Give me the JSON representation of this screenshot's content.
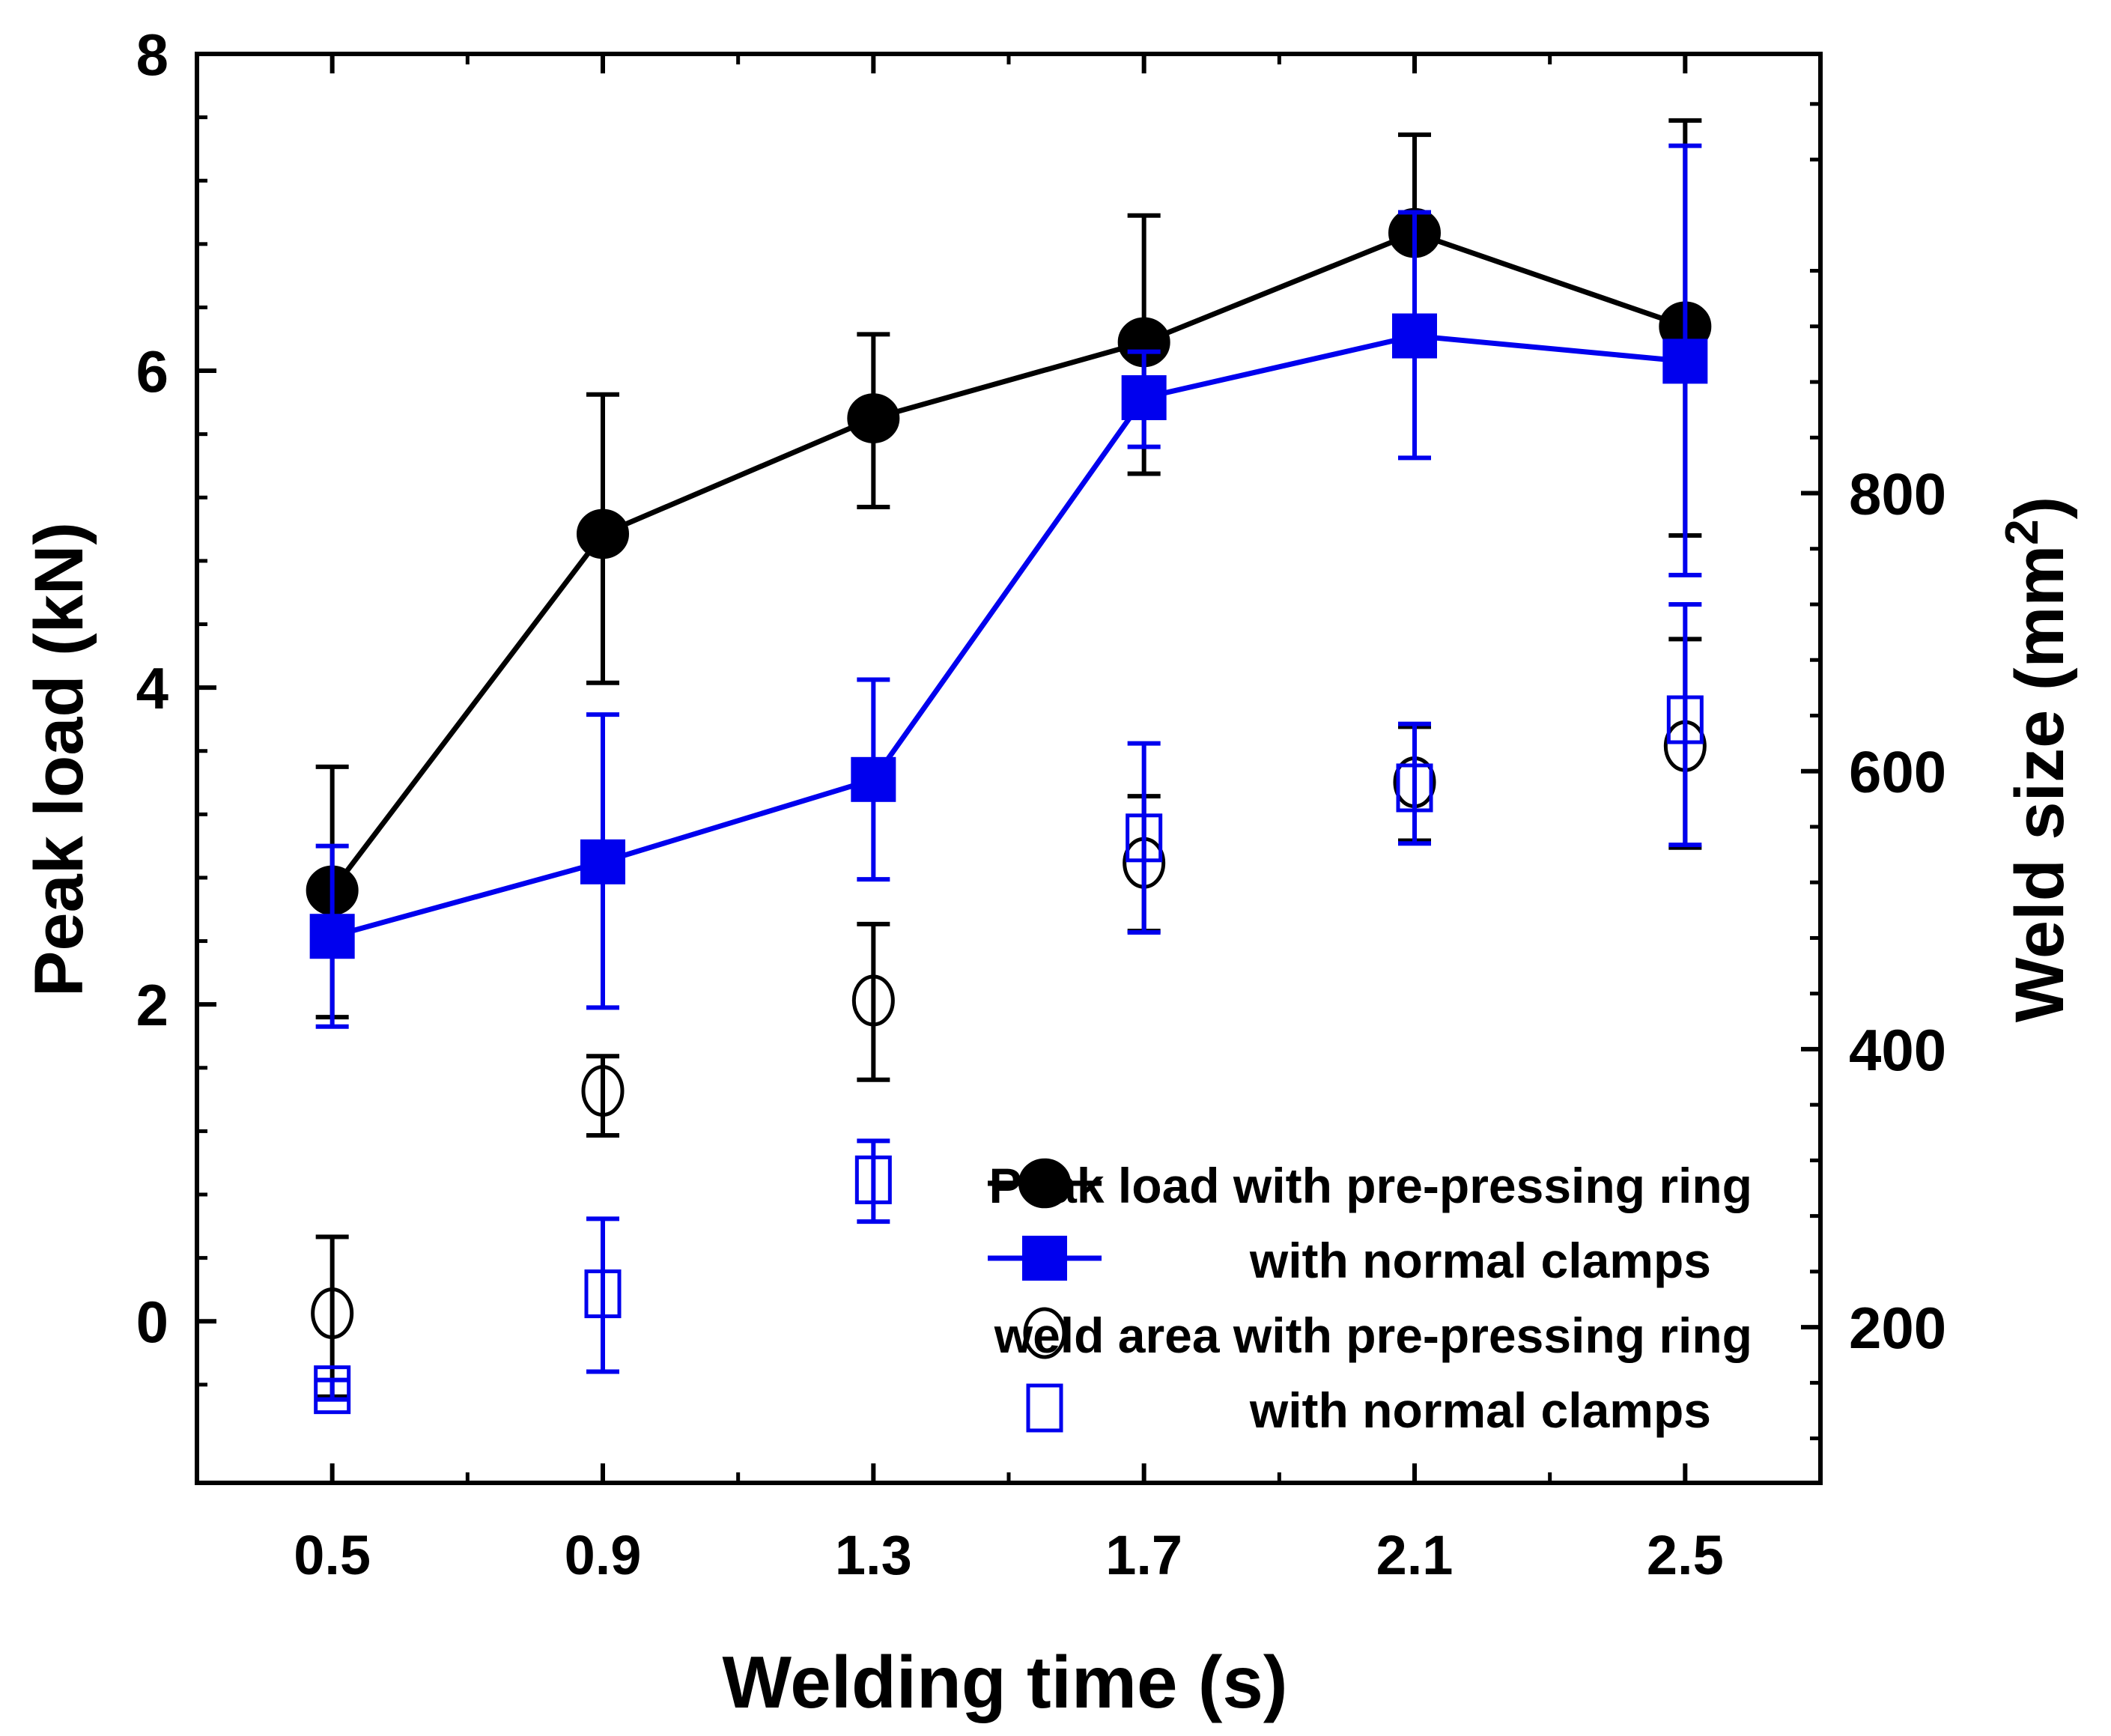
{
  "chart_data": {
    "type": "scatter",
    "xlabel": "Welding time (s)",
    "ylabel_left": "Peak load (kN)",
    "ylabel_right": "Weld size (mm",
    "ylabel_right_sup": "2",
    "ylabel_right_close": ")",
    "x_ticks": [
      "0.5",
      "0.9",
      "1.3",
      "1.7",
      "2.1",
      "2.5"
    ],
    "y_left_ticks": [
      "0",
      "2",
      "4",
      "6",
      "8"
    ],
    "y_right_ticks": [
      "200",
      "400",
      "600",
      "800"
    ],
    "xlim": [
      0.3,
      2.7
    ],
    "ylim_left": [
      -1.02,
      8
    ],
    "ylim_right": [
      88,
      1116
    ],
    "grid": false,
    "legend_position": "bottom-right",
    "series": [
      {
        "name": "Peak load with pre-pressing ring",
        "axis": "left",
        "marker": "filled-circle",
        "line": true,
        "color": "#000000",
        "points": [
          {
            "x": 0.5,
            "y": 2.72,
            "lo": 1.92,
            "hi": 3.5
          },
          {
            "x": 0.9,
            "y": 4.97,
            "lo": 4.03,
            "hi": 5.85
          },
          {
            "x": 1.3,
            "y": 5.7,
            "lo": 5.14,
            "hi": 6.23
          },
          {
            "x": 1.7,
            "y": 6.18,
            "lo": 5.35,
            "hi": 6.98
          },
          {
            "x": 2.1,
            "y": 6.87,
            "lo": 6.24,
            "hi": 7.49
          },
          {
            "x": 2.5,
            "y": 6.28,
            "lo": 4.96,
            "hi": 7.58
          }
        ]
      },
      {
        "name": "with normal clamps",
        "axis": "left",
        "marker": "filled-square",
        "line": true,
        "color": "#0000ee",
        "points": [
          {
            "x": 0.5,
            "y": 2.43,
            "lo": 1.86,
            "hi": 3.0
          },
          {
            "x": 0.9,
            "y": 2.9,
            "lo": 1.98,
            "hi": 3.83
          },
          {
            "x": 1.3,
            "y": 3.42,
            "lo": 2.79,
            "hi": 4.05
          },
          {
            "x": 1.7,
            "y": 5.83,
            "lo": 5.52,
            "hi": 6.12
          },
          {
            "x": 2.1,
            "y": 6.22,
            "lo": 5.45,
            "hi": 7.0
          },
          {
            "x": 2.5,
            "y": 6.06,
            "lo": 4.71,
            "hi": 7.42
          }
        ]
      },
      {
        "name": "weld area with pre-pressing ring",
        "axis": "right",
        "marker": "open-circle",
        "line": false,
        "color": "#000000",
        "points": [
          {
            "x": 0.5,
            "y": 210,
            "lo": 150,
            "hi": 265
          },
          {
            "x": 0.9,
            "y": 370,
            "lo": 338,
            "hi": 395
          },
          {
            "x": 1.3,
            "y": 435,
            "lo": 378,
            "hi": 490
          },
          {
            "x": 1.7,
            "y": 534,
            "lo": 485,
            "hi": 582
          },
          {
            "x": 2.1,
            "y": 592,
            "lo": 550,
            "hi": 632
          },
          {
            "x": 2.5,
            "y": 618,
            "lo": 545,
            "hi": 695
          }
        ]
      },
      {
        "name": "with normal clamps",
        "axis": "right",
        "marker": "open-square",
        "line": false,
        "color": "#0000ee",
        "points": [
          {
            "x": 0.5,
            "y": 155,
            "lo": 148,
            "hi": 162
          },
          {
            "x": 0.9,
            "y": 224,
            "lo": 168,
            "hi": 278
          },
          {
            "x": 1.3,
            "y": 306,
            "lo": 276,
            "hi": 334
          },
          {
            "x": 1.7,
            "y": 552,
            "lo": 484,
            "hi": 620
          },
          {
            "x": 2.1,
            "y": 588,
            "lo": 548,
            "hi": 634
          },
          {
            "x": 2.5,
            "y": 637,
            "lo": 547,
            "hi": 720
          }
        ]
      }
    ]
  }
}
